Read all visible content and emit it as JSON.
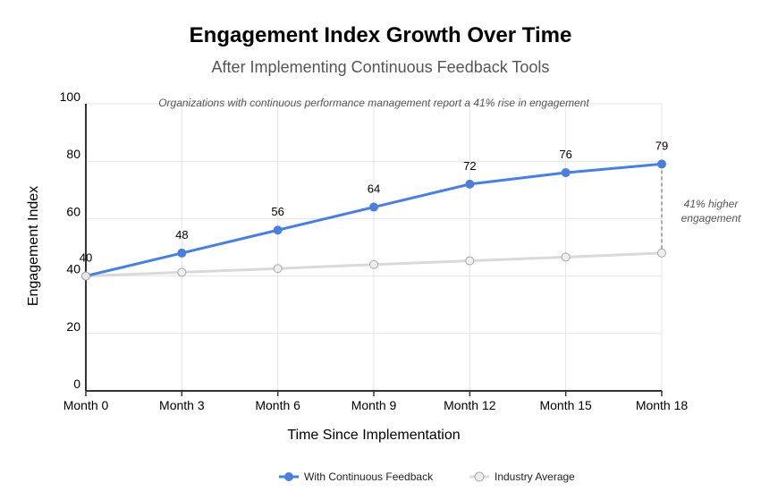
{
  "title": "Engagement Index Growth Over Time",
  "subtitle": "After Implementing Continuous Feedback Tools",
  "chart_data": {
    "type": "line",
    "x": [
      "Month 0",
      "Month 3",
      "Month 6",
      "Month 9",
      "Month 12",
      "Month 15",
      "Month 18"
    ],
    "xlabel": "Time Since Implementation",
    "ylabel": "Engagement Index",
    "ylim": [
      0,
      100
    ],
    "yticks": [
      "0",
      "20",
      "40",
      "60",
      "80",
      "100"
    ],
    "grid": true,
    "legend_position": "bottom-center",
    "series": [
      {
        "name": "With Continuous Feedback",
        "values": [
          40,
          48,
          56,
          64,
          72,
          76,
          79
        ],
        "color": "#4a7fdd",
        "labels": [
          "40",
          "48",
          "56",
          "64",
          "72",
          "76",
          "79"
        ]
      },
      {
        "name": "Industry Average",
        "values": [
          40,
          41.3,
          42.6,
          44,
          45.3,
          46.6,
          48
        ],
        "color": "#d9d9d9"
      }
    ],
    "annotations": {
      "top_note": "Organizations with continuous performance management report a 41% rise in engagement",
      "gap_note_line1": "41% higher",
      "gap_note_line2": "engagement"
    }
  }
}
